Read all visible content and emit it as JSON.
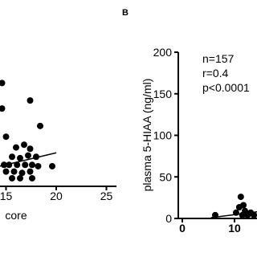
{
  "chart_data": [
    {
      "type": "scatter",
      "xlabel": "core",
      "x": [
        14.6,
        14.6,
        17.4,
        18.4,
        15.0,
        16.0,
        16.8,
        17.4,
        15.6,
        16.4,
        17.2,
        18.0,
        14.8,
        15.3,
        16.1,
        16.9,
        17.6,
        18.2,
        15.0,
        15.8,
        16.6,
        17.4,
        19.6,
        15.6,
        16.4,
        17.6
      ],
      "values": [
        77,
        58,
        64,
        45,
        37,
        29,
        31,
        28,
        22,
        21,
        23,
        22,
        16,
        16,
        16,
        16,
        16,
        15,
        11,
        11,
        10,
        11,
        15,
        6,
        6,
        6
      ],
      "fit": {
        "x": [
          14.4,
          20
        ],
        "y": [
          15,
          25
        ]
      },
      "color": "#000000",
      "xlim": [
        14.4,
        26
      ],
      "xticks": [
        15,
        20,
        25
      ],
      "ylim": [
        0,
        100
      ]
    },
    {
      "type": "scatter",
      "panel_label": "B",
      "ylabel": "plasma 5-HIAA (ng/ml)",
      "annotations": [
        "n=157",
        "r=0.4",
        "p<0.0001"
      ],
      "x": [
        6.3,
        10.3,
        10.9,
        11.2,
        11.7,
        12.0,
        12.5,
        13.1,
        13.7,
        11.5
      ],
      "values": [
        4,
        7,
        13.5,
        26,
        16,
        9,
        4,
        7,
        4,
        4
      ],
      "fit": {
        "x": [
          5.5,
          14.3
        ],
        "y": [
          1,
          8
        ]
      },
      "color": "#000000",
      "xlim": [
        0,
        14.3
      ],
      "xticks": [
        0,
        10
      ],
      "ylim": [
        0,
        200
      ],
      "yticks": [
        0,
        50,
        100,
        150,
        200
      ]
    }
  ]
}
